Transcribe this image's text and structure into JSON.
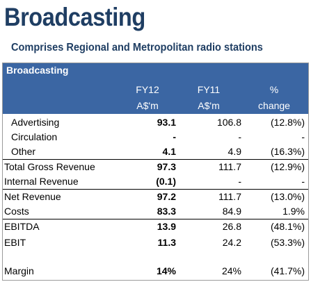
{
  "page": {
    "title": "Broadcasting",
    "subtitle": "Comprises Regional and Metropolitan radio stations"
  },
  "colors": {
    "title": "#1f3e63",
    "header_bg": "#3b66a3",
    "header_text": "#ffffff"
  },
  "table": {
    "title": "Broadcasting",
    "columns": [
      {
        "line1": "FY12",
        "line2": "A$'m"
      },
      {
        "line1": "FY11",
        "line2": "A$'m"
      },
      {
        "line1": "%",
        "line2": "change"
      }
    ],
    "rows": [
      {
        "label": "Advertising",
        "fy12": "93.1",
        "fy11": "106.8",
        "change": "(12.8%)"
      },
      {
        "label": "Circulation",
        "fy12": "-",
        "fy11": "-",
        "change": "-"
      },
      {
        "label": "Other",
        "fy12": "4.1",
        "fy11": "4.9",
        "change": "(16.3%)"
      },
      {
        "label": "Total Gross Revenue",
        "fy12": "97.3",
        "fy11": "111.7",
        "change": "(12.9%)"
      },
      {
        "label": "Internal Revenue",
        "fy12": "(0.1)",
        "fy11": "-",
        "change": "-"
      },
      {
        "label": "Net Revenue",
        "fy12": "97.2",
        "fy11": "111.7",
        "change": "(13.0%)"
      },
      {
        "label": "Costs",
        "fy12": "83.3",
        "fy11": "84.9",
        "change": "1.9%"
      },
      {
        "label": "EBITDA",
        "fy12": "13.9",
        "fy11": "26.8",
        "change": "(48.1%)"
      },
      {
        "label": "EBIT",
        "fy12": "11.3",
        "fy11": "24.2",
        "change": "(53.3%)"
      },
      {
        "label": "Margin",
        "fy12": "14%",
        "fy11": "24%",
        "change": "(41.7%)"
      }
    ]
  }
}
